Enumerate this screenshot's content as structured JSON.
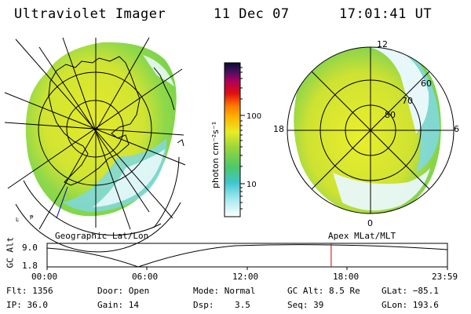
{
  "header": {
    "instrument": "Ultraviolet Imager",
    "date": "11 Dec 07",
    "time": "17:01:41 UT"
  },
  "left_panel": {
    "caption": "Geographic Lat/Lon"
  },
  "right_panel": {
    "caption": "Apex MLat/MLT",
    "lat_labels": [
      "60",
      "70",
      "80"
    ],
    "mlt_labels": {
      "top": "12",
      "left": "18",
      "right": "6",
      "bottom": "0"
    }
  },
  "colorbar": {
    "unit": "photon cm⁻²s⁻¹",
    "ticks": [
      "100",
      "10"
    ]
  },
  "altitude_plot": {
    "ylabel": "GC Alt",
    "yticks": [
      "9.0",
      "1.8"
    ],
    "xticks": [
      "00:00",
      "06:00",
      "12:00",
      "18:00",
      "23:59"
    ],
    "marker_time_hours": 17.03
  },
  "status": {
    "row1": [
      {
        "key": "Flt",
        "text": "Flt: 1356"
      },
      {
        "key": "Door",
        "text": "Door: Open"
      },
      {
        "key": "Mode",
        "text": "Mode: Normal"
      },
      {
        "key": "GCAlt",
        "text": "GC Alt: 8.5 Re"
      },
      {
        "key": "GLat",
        "text": "GLat: −85.1"
      }
    ],
    "row2": [
      {
        "key": "IP",
        "text": "IP: 36.0"
      },
      {
        "key": "Gain",
        "text": "Gain: 14"
      },
      {
        "key": "Dsp",
        "text": "Dsp:    3.5"
      },
      {
        "key": "Seq",
        "text": "Seq: 39"
      },
      {
        "key": "GLon",
        "text": "GLon: 193.6"
      }
    ]
  },
  "colors": {
    "aurora_yellow": "#e4ea2a",
    "aurora_green": "#7ad44a",
    "aurora_cyan": "#7fd8e0",
    "marker": "#cc0000",
    "coast": "#0000cc"
  }
}
